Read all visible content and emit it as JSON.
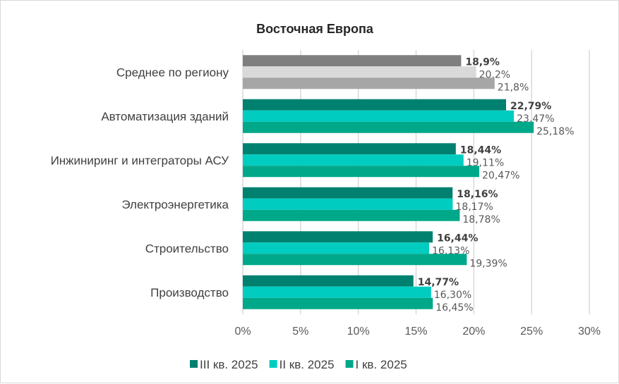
{
  "chart_data": {
    "type": "bar",
    "orientation": "horizontal",
    "title": "Восточная Европа",
    "categories": [
      "Среднее по региону",
      "Автоматизация зданий",
      "Инжиниринг и интеграторы АСУ",
      "Электроэнергетика",
      "Строительство",
      "Производство"
    ],
    "series": [
      {
        "name": "III кв. 2025",
        "color": "#008170",
        "region_color": "#7f7f7f",
        "values": [
          18.9,
          22.79,
          18.44,
          18.16,
          16.44,
          14.77
        ],
        "labels": [
          "18,9%",
          "22,79%",
          "18,44%",
          "18,16%",
          "16,44%",
          "14,77%"
        ]
      },
      {
        "name": "II кв. 2025",
        "color": "#00ccc0",
        "region_color": "#d9d9d9",
        "values": [
          20.2,
          23.47,
          19.11,
          18.17,
          16.13,
          16.3
        ],
        "labels": [
          "20,2%",
          "23,47%",
          "19,11%",
          "18,17%",
          "16,13%",
          "16,30%"
        ]
      },
      {
        "name": "I кв. 2025",
        "color": "#00a88a",
        "region_color": "#a6a6a6",
        "values": [
          21.8,
          25.18,
          20.47,
          18.78,
          19.39,
          16.45
        ],
        "labels": [
          "21,8%",
          "25,18%",
          "20,47%",
          "18,78%",
          "19,39%",
          "16,45%"
        ]
      }
    ],
    "xlim": [
      0,
      30
    ],
    "xticks": [
      "0%",
      "5%",
      "10%",
      "15%",
      "20%",
      "25%",
      "30%"
    ],
    "grid": true,
    "legend": "bottom",
    "xlabel": "",
    "ylabel": ""
  }
}
